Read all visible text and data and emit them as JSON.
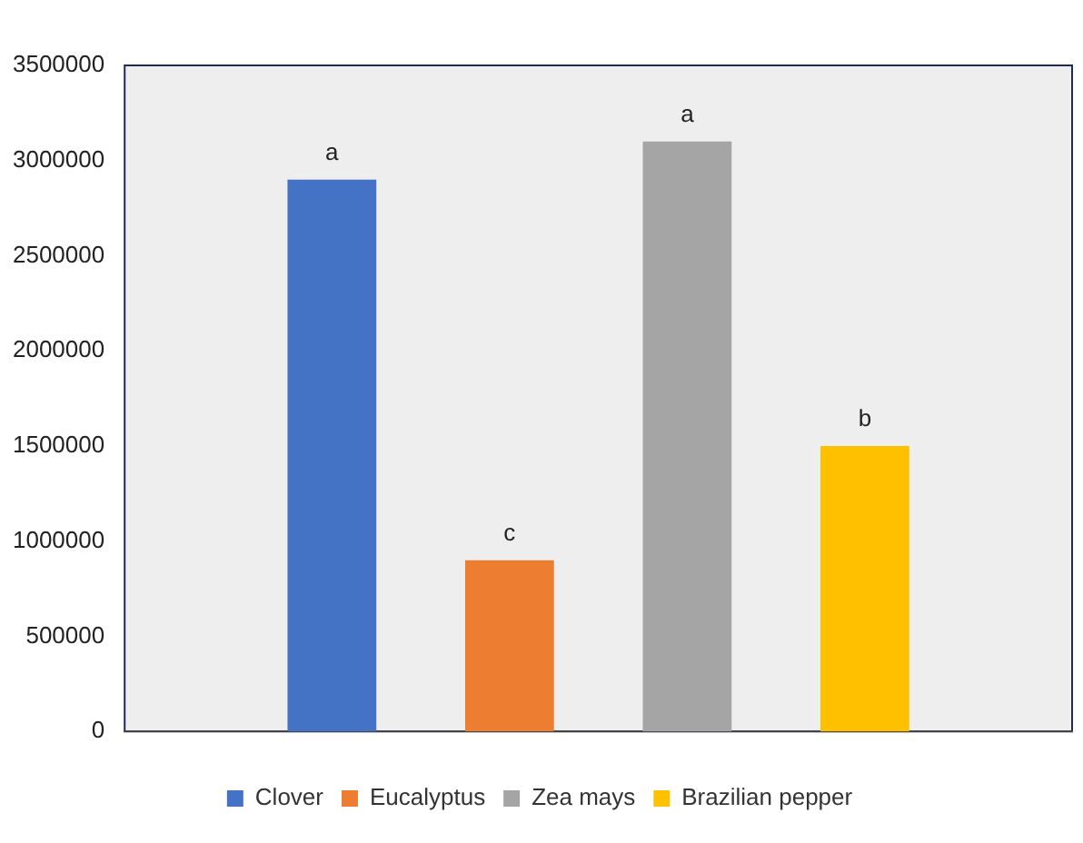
{
  "chart_data": {
    "type": "bar",
    "categories": [
      null
    ],
    "series": [
      {
        "name": "Clover",
        "color": "#4472c4",
        "values": [
          2900000
        ]
      },
      {
        "name": "Eucalyptus",
        "color": "#ed7d31",
        "values": [
          900000
        ]
      },
      {
        "name": "Zea mays",
        "color": "#a5a5a5",
        "values": [
          3100000
        ]
      },
      {
        "name": "Brazilian pepper",
        "color": "#ffc000",
        "values": [
          1500000
        ]
      }
    ],
    "ylim": [
      0,
      3500000
    ],
    "yticks": [
      0,
      500000,
      1000000,
      1500000,
      2000000,
      2500000,
      3000000,
      3500000
    ],
    "annotations": [
      "a",
      "c",
      "a",
      "b"
    ],
    "grid": false,
    "legend": "bottom"
  }
}
